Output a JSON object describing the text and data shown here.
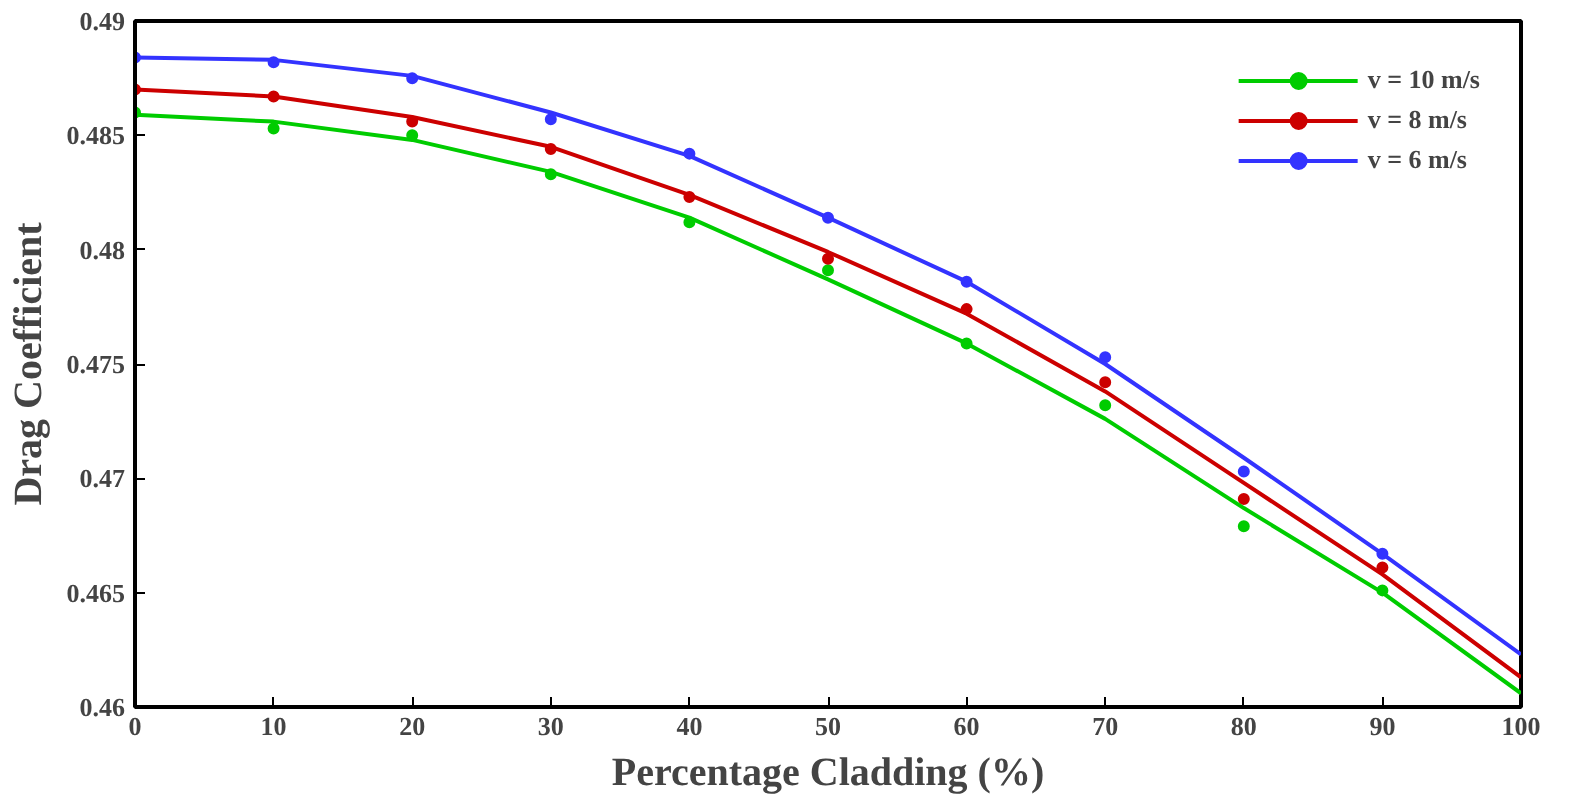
{
  "chart_data": {
    "type": "scatter",
    "xlabel": "Percentage Cladding (%)",
    "ylabel": "Drag Coefficient",
    "xlim": [
      0,
      100
    ],
    "ylim": [
      0.46,
      0.49
    ],
    "xticks": [
      0,
      10,
      20,
      30,
      40,
      50,
      60,
      70,
      80,
      90,
      100
    ],
    "yticks": [
      {
        "value": 0.46,
        "label": "0.46"
      },
      {
        "value": 0.465,
        "label": "0.465"
      },
      {
        "value": 0.47,
        "label": "0.47"
      },
      {
        "value": 0.475,
        "label": "0.475"
      },
      {
        "value": 0.48,
        "label": "0.48"
      },
      {
        "value": 0.485,
        "label": "0.485"
      },
      {
        "value": 0.49,
        "label": "0.49"
      }
    ],
    "grid": false,
    "legend": "top right",
    "marker": "circle",
    "x": [
      0,
      10,
      20,
      30,
      40,
      50,
      60,
      70,
      80,
      90
    ],
    "series": [
      {
        "name": "v = 10 m/s",
        "color": "#00cc00",
        "values": [
          0.486,
          0.4853,
          0.485,
          0.4833,
          0.4812,
          0.4791,
          0.4759,
          0.4732,
          0.4679,
          0.4651
        ]
      },
      {
        "name": "v = 8 m/s",
        "color": "#cc0000",
        "values": [
          0.487,
          0.4867,
          0.4856,
          0.4844,
          0.4823,
          0.4796,
          0.4774,
          0.4742,
          0.4691,
          0.4661
        ]
      },
      {
        "name": "v = 6 m/s",
        "color": "#3333ff",
        "values": [
          0.4884,
          0.4882,
          0.4875,
          0.4857,
          0.4842,
          0.4814,
          0.4786,
          0.4753,
          0.4703,
          0.4667
        ]
      },
      {
        "type": "line",
        "marker": "none",
        "color": "#00cc00",
        "x": [
          0,
          10,
          20,
          30,
          40,
          50,
          60,
          70,
          80,
          90,
          100
        ],
        "values": [
          0.4859,
          0.4856,
          0.4848,
          0.4834,
          0.4814,
          0.4787,
          0.4759,
          0.4726,
          0.4687,
          0.465,
          0.4606
        ]
      },
      {
        "type": "line",
        "marker": "none",
        "color": "#cc0000",
        "x": [
          0,
          10,
          20,
          30,
          40,
          50,
          60,
          70,
          80,
          90,
          100
        ],
        "values": [
          0.487,
          0.4867,
          0.4858,
          0.4845,
          0.4824,
          0.4799,
          0.4772,
          0.4738,
          0.4698,
          0.4658,
          0.4613
        ]
      },
      {
        "type": "line",
        "marker": "none",
        "color": "#3333ff",
        "x": [
          0,
          10,
          20,
          30,
          40,
          50,
          60,
          70,
          80,
          90,
          100
        ],
        "values": [
          0.4884,
          0.4883,
          0.4876,
          0.486,
          0.4841,
          0.4814,
          0.4786,
          0.475,
          0.4709,
          0.4667,
          0.4623
        ]
      }
    ]
  }
}
